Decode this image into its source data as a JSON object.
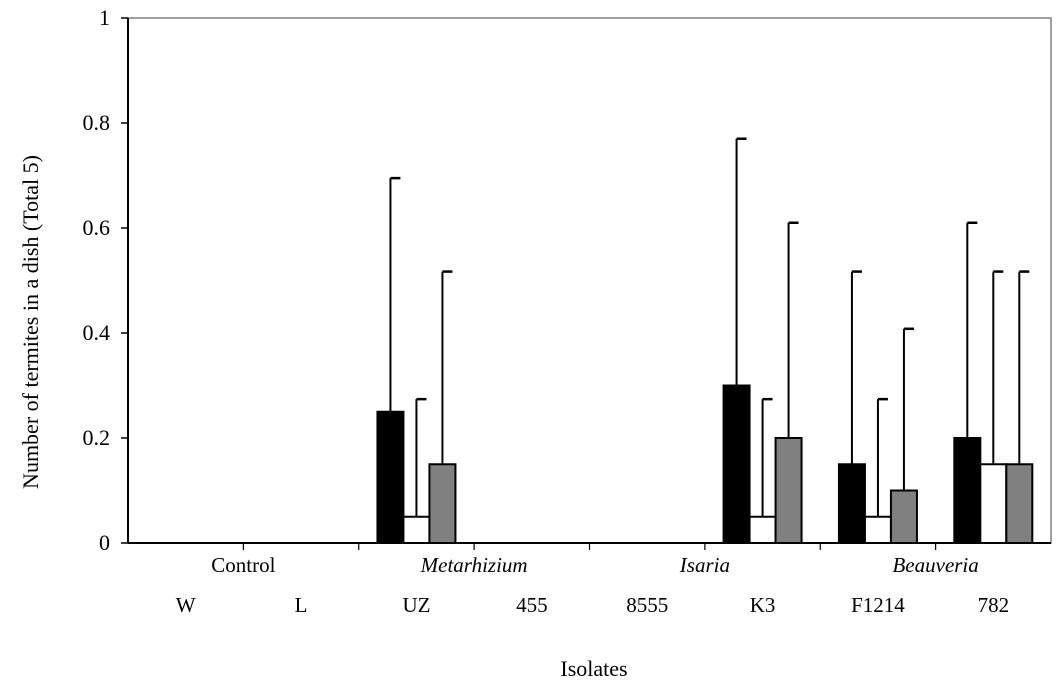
{
  "chart_data": {
    "type": "bar",
    "xlabel": "Isolates",
    "ylabel": "Number of termites in a dish (Total 5)",
    "ylim": [
      0,
      1
    ],
    "yticks": [
      "0",
      "0.2",
      "0.4",
      "0.6",
      "0.8",
      "1"
    ],
    "grid": false,
    "legend": "none",
    "groups": [
      {
        "label": "Control",
        "italic": false
      },
      {
        "label": "Metarhizium",
        "italic": true
      },
      {
        "label": "Isaria",
        "italic": true
      },
      {
        "label": "Beauveria",
        "italic": true
      }
    ],
    "categories": [
      "W",
      "L",
      "UZ",
      "455",
      "8555",
      "K3",
      "F1214",
      "782"
    ],
    "series": [
      {
        "color": "#000000",
        "values": [
          0,
          0,
          0.25,
          0,
          0,
          0.3,
          0.15,
          0.2
        ],
        "error": [
          0,
          0,
          0.445,
          0,
          0,
          0.47,
          0.367,
          0.41
        ]
      },
      {
        "color": "#ffffff",
        "values": [
          0,
          0,
          0.05,
          0,
          0,
          0.05,
          0.05,
          0.15
        ],
        "error": [
          0,
          0,
          0.224,
          0,
          0,
          0.224,
          0.224,
          0.367
        ]
      },
      {
        "color": "#808080",
        "values": [
          0,
          0,
          0.15,
          0,
          0,
          0.2,
          0.1,
          0.15
        ],
        "error": [
          0,
          0,
          0.367,
          0,
          0,
          0.41,
          0.308,
          0.367
        ]
      }
    ]
  }
}
